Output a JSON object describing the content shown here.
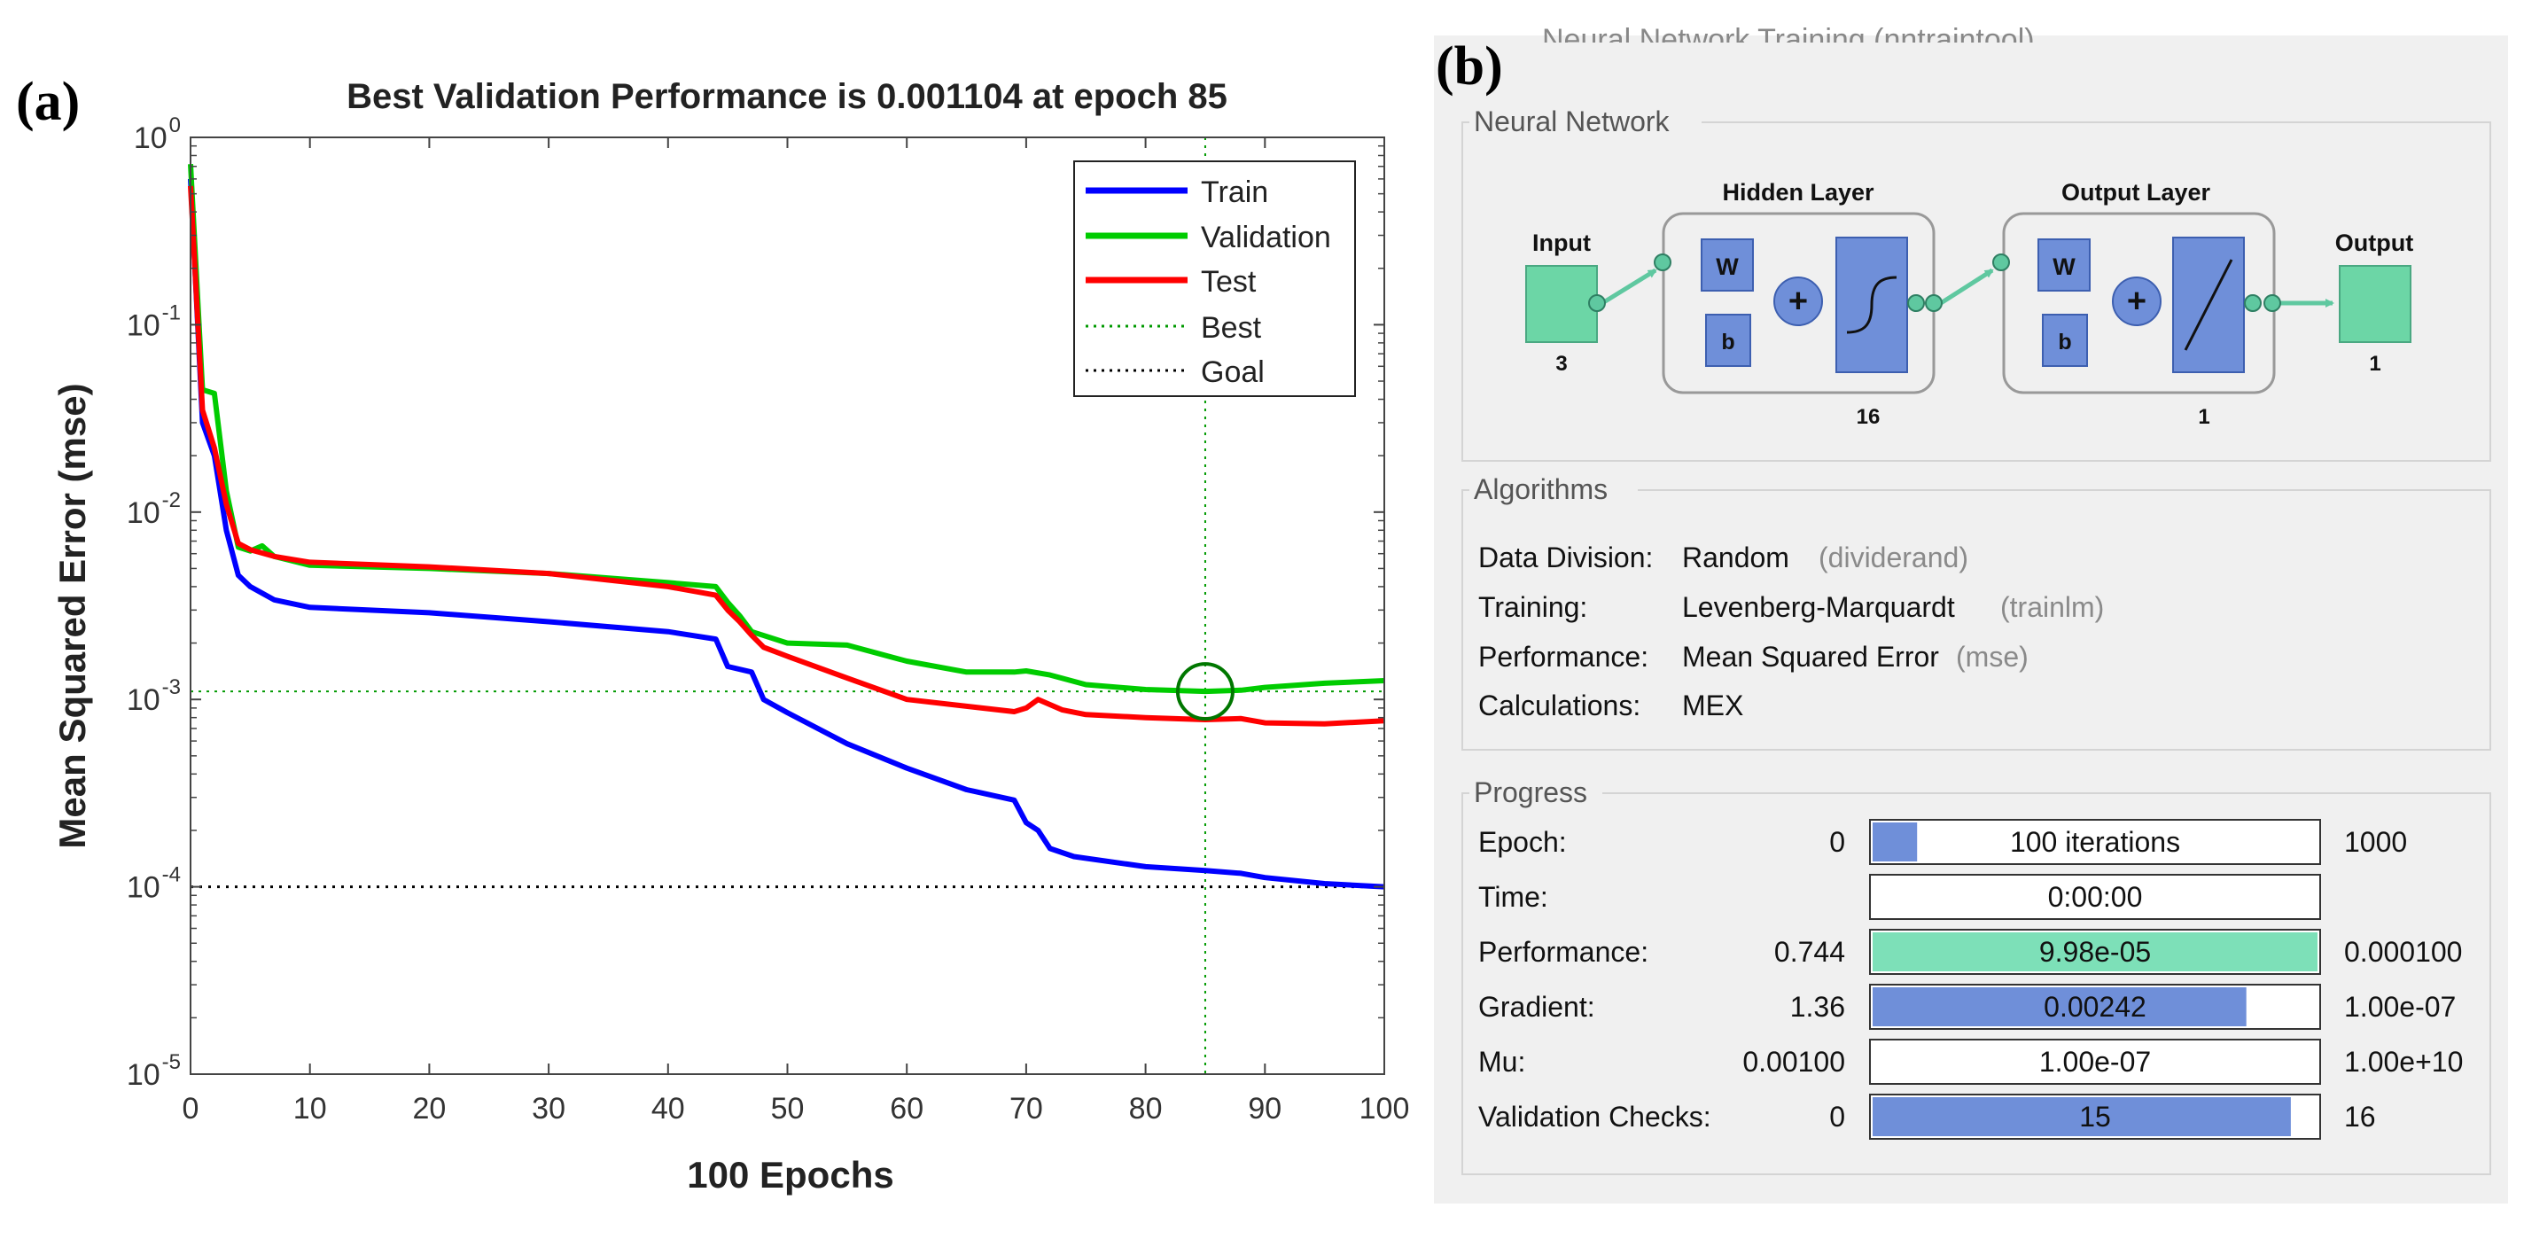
{
  "panel_a": {
    "label": "(a)",
    "chart_data": {
      "type": "line",
      "title": "Best Validation Performance is 0.001104 at epoch 85",
      "xlabel": "100 Epochs",
      "ylabel": "Mean Squared Error  (mse)",
      "xlim": [
        0,
        100
      ],
      "ylim": [
        1e-05,
        1
      ],
      "yscale": "log",
      "x_ticks": [
        0,
        10,
        20,
        30,
        40,
        50,
        60,
        70,
        80,
        90,
        100
      ],
      "y_tick_values": [
        1,
        0.1,
        0.01,
        0.001,
        0.0001,
        1e-05
      ],
      "y_tick_labels": [
        {
          "base": "10",
          "exp": "0"
        },
        {
          "base": "10",
          "exp": "-1"
        },
        {
          "base": "10",
          "exp": "-2"
        },
        {
          "base": "10",
          "exp": "-3"
        },
        {
          "base": "10",
          "exp": "-4"
        },
        {
          "base": "10",
          "exp": "-5"
        }
      ],
      "series": [
        {
          "name": "Train",
          "color": "#0000ff",
          "points": [
            [
              0,
              0.6
            ],
            [
              1,
              0.03
            ],
            [
              2,
              0.02
            ],
            [
              3,
              0.008
            ],
            [
              4,
              0.0046
            ],
            [
              5,
              0.004
            ],
            [
              7,
              0.0034
            ],
            [
              10,
              0.0031
            ],
            [
              20,
              0.0029
            ],
            [
              30,
              0.0026
            ],
            [
              40,
              0.0023
            ],
            [
              44,
              0.0021
            ],
            [
              45,
              0.0015
            ],
            [
              47,
              0.0014
            ],
            [
              48,
              0.001
            ],
            [
              50,
              0.00085
            ],
            [
              55,
              0.00058
            ],
            [
              60,
              0.00043
            ],
            [
              65,
              0.00033
            ],
            [
              69,
              0.00029
            ],
            [
              70,
              0.00022
            ],
            [
              71,
              0.0002
            ],
            [
              72,
              0.00016
            ],
            [
              74,
              0.000145
            ],
            [
              80,
              0.000128
            ],
            [
              85,
              0.000122
            ],
            [
              88,
              0.000118
            ],
            [
              90,
              0.000112
            ],
            [
              95,
              0.000104
            ],
            [
              100,
              0.0001
            ]
          ]
        },
        {
          "name": "Validation",
          "color": "#00cc00",
          "points": [
            [
              0,
              0.72
            ],
            [
              1,
              0.045
            ],
            [
              2,
              0.043
            ],
            [
              3,
              0.013
            ],
            [
              4,
              0.0065
            ],
            [
              5,
              0.0062
            ],
            [
              6,
              0.0066
            ],
            [
              7,
              0.0058
            ],
            [
              10,
              0.0052
            ],
            [
              20,
              0.005
            ],
            [
              30,
              0.0047
            ],
            [
              40,
              0.0042
            ],
            [
              44,
              0.004
            ],
            [
              45,
              0.0033
            ],
            [
              46,
              0.0028
            ],
            [
              47,
              0.0023
            ],
            [
              50,
              0.002
            ],
            [
              55,
              0.00195
            ],
            [
              60,
              0.0016
            ],
            [
              65,
              0.0014
            ],
            [
              69,
              0.0014
            ],
            [
              70,
              0.00142
            ],
            [
              72,
              0.00135
            ],
            [
              75,
              0.0012
            ],
            [
              80,
              0.00113
            ],
            [
              85,
              0.001104
            ],
            [
              88,
              0.00112
            ],
            [
              90,
              0.00116
            ],
            [
              95,
              0.00122
            ],
            [
              100,
              0.00126
            ]
          ]
        },
        {
          "name": "Test",
          "color": "#ff0000",
          "points": [
            [
              0,
              0.55
            ],
            [
              1,
              0.035
            ],
            [
              2,
              0.022
            ],
            [
              3,
              0.011
            ],
            [
              4,
              0.0068
            ],
            [
              5,
              0.0063
            ],
            [
              7,
              0.0058
            ],
            [
              10,
              0.0054
            ],
            [
              20,
              0.0051
            ],
            [
              30,
              0.0047
            ],
            [
              40,
              0.004
            ],
            [
              44,
              0.0036
            ],
            [
              45,
              0.003
            ],
            [
              46,
              0.0026
            ],
            [
              47,
              0.0022
            ],
            [
              48,
              0.0019
            ],
            [
              50,
              0.0017
            ],
            [
              55,
              0.0013
            ],
            [
              60,
              0.001
            ],
            [
              65,
              0.00092
            ],
            [
              69,
              0.00086
            ],
            [
              70,
              0.0009
            ],
            [
              71,
              0.001
            ],
            [
              73,
              0.00088
            ],
            [
              75,
              0.00083
            ],
            [
              80,
              0.0008
            ],
            [
              85,
              0.00078
            ],
            [
              88,
              0.00079
            ],
            [
              90,
              0.00075
            ],
            [
              95,
              0.00074
            ],
            [
              100,
              0.00077
            ]
          ]
        }
      ],
      "best_marker": {
        "label": "Best",
        "epoch": 85,
        "value": 0.001104,
        "color": "#009900"
      },
      "goal": {
        "label": "Goal",
        "value": 0.0001,
        "color": "#000000"
      },
      "legend_location": "top-right"
    }
  },
  "panel_b": {
    "label": "(b)",
    "window_title_partial": "Neural Network Training (nntraintool)",
    "network": {
      "section_title": "Neural Network",
      "input_label": "Input",
      "input_size": "3",
      "hidden_title": "Hidden Layer",
      "hidden_size": "16",
      "output_layer_title": "Output Layer",
      "output_layer_size": "1",
      "output_label": "Output",
      "output_size": "1",
      "w_label": "W",
      "b_label": "b",
      "plus_label": "+"
    },
    "algorithms": {
      "section_title": "Algorithms",
      "rows": [
        {
          "label": "Data Division:",
          "value": "Random",
          "note": "(dividerand)"
        },
        {
          "label": "Training:",
          "value": "Levenberg-Marquardt",
          "note": "(trainlm)"
        },
        {
          "label": "Performance:",
          "value": "Mean Squared Error",
          "note": "(mse)"
        },
        {
          "label": "Calculations:",
          "value": "MEX",
          "note": ""
        }
      ]
    },
    "progress": {
      "section_title": "Progress",
      "rows": [
        {
          "label": "Epoch:",
          "start": "0",
          "bar_text": "100 iterations",
          "end": "1000",
          "fill": 0.1,
          "fill_color": "#6f8fd9"
        },
        {
          "label": "Time:",
          "start": "",
          "bar_text": "0:00:00",
          "end": "",
          "fill": 0,
          "fill_color": "#6f8fd9"
        },
        {
          "label": "Performance:",
          "start": "0.744",
          "bar_text": "9.98e-05",
          "end": "0.000100",
          "fill": 1.0,
          "fill_color": "#7de0b8"
        },
        {
          "label": "Gradient:",
          "start": "1.36",
          "bar_text": "0.00242",
          "end": "1.00e-07",
          "fill": 0.84,
          "fill_color": "#6f8fd9"
        },
        {
          "label": "Mu:",
          "start": "0.00100",
          "bar_text": "1.00e-07",
          "end": "1.00e+10",
          "fill": 0,
          "fill_color": "#6f8fd9"
        },
        {
          "label": "Validation Checks:",
          "start": "0",
          "bar_text": "15",
          "end": "16",
          "fill": 0.94,
          "fill_color": "#6f8fd9"
        }
      ]
    }
  }
}
